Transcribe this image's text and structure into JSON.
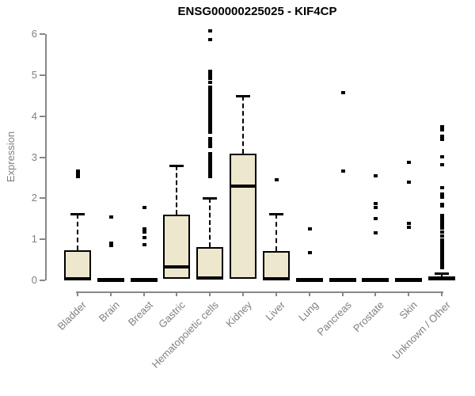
{
  "chart_data": {
    "type": "boxplot",
    "title": "ENSG00000225025 - KIF4CP",
    "ylabel": "Expression",
    "xlabel": "",
    "ylim": [
      0,
      6
    ],
    "yticks": [
      0,
      1,
      2,
      3,
      4,
      5,
      6
    ],
    "grid": false,
    "legend": "none",
    "box_fill": "#ECE7CD",
    "box_border": "#000000",
    "axis_color": "#888888",
    "label_color": "#808080",
    "title_color": "#000000",
    "categories": [
      "Bladder",
      "Brain",
      "Breast",
      "Gastric",
      "Hematopoietic cells",
      "Kidney",
      "Liver",
      "Lung",
      "Pancreas",
      "Prostate",
      "Skin",
      "Unknown / Other"
    ],
    "boxes": [
      {
        "category": "Bladder",
        "whisker_low": 0,
        "q1": 0,
        "median": 0.04,
        "q3": 0.73,
        "whisker_high": 1.63,
        "outliers": [
          2.53,
          2.6,
          2.66
        ]
      },
      {
        "category": "Brain",
        "whisker_low": 0,
        "q1": 0,
        "median": 0.02,
        "q3": 0.04,
        "whisker_high": 0.04,
        "outliers": [
          0.85,
          0.9,
          1.55
        ]
      },
      {
        "category": "Breast",
        "whisker_low": 0,
        "q1": 0,
        "median": 0.02,
        "q3": 0.04,
        "whisker_high": 0.04,
        "outliers": [
          0.86,
          1.04,
          1.18,
          1.25,
          1.78
        ]
      },
      {
        "category": "Gastric",
        "whisker_low": 0,
        "q1": 0.03,
        "median": 0.33,
        "q3": 1.6,
        "whisker_high": 2.8,
        "outliers": []
      },
      {
        "category": "Hematopoietic cells",
        "whisker_low": 0,
        "q1": 0.01,
        "median": 0.05,
        "q3": 0.81,
        "whisker_high": 2.0,
        "outliers": [
          2.53,
          2.58,
          2.63,
          2.68,
          2.73,
          2.78,
          2.83,
          2.88,
          2.93,
          2.98,
          3.03,
          3.08,
          3.26,
          3.31,
          3.36,
          3.41,
          3.46,
          3.6,
          3.65,
          3.7,
          3.75,
          3.8,
          3.85,
          3.9,
          3.95,
          4.0,
          4.05,
          4.1,
          4.15,
          4.2,
          4.25,
          4.3,
          4.35,
          4.4,
          4.45,
          4.5,
          4.55,
          4.6,
          4.65,
          4.7,
          4.82,
          4.92,
          4.98,
          5.04,
          5.1,
          5.86,
          6.08
        ]
      },
      {
        "category": "Kidney",
        "whisker_low": 0,
        "q1": 0.04,
        "median": 2.3,
        "q3": 3.08,
        "whisker_high": 4.5,
        "outliers": []
      },
      {
        "category": "Liver",
        "whisker_low": 0,
        "q1": 0.01,
        "median": 0.04,
        "q3": 0.72,
        "whisker_high": 1.63,
        "outliers": [
          2.45
        ]
      },
      {
        "category": "Lung",
        "whisker_low": 0,
        "q1": 0,
        "median": 0.02,
        "q3": 0.04,
        "whisker_high": 0.04,
        "outliers": [
          0.67,
          1.25
        ]
      },
      {
        "category": "Pancreas",
        "whisker_low": 0,
        "q1": 0,
        "median": 0.02,
        "q3": 0.04,
        "whisker_high": 0.04,
        "outliers": [
          2.67,
          4.58
        ]
      },
      {
        "category": "Prostate",
        "whisker_low": 0,
        "q1": 0,
        "median": 0.02,
        "q3": 0.04,
        "whisker_high": 0.04,
        "outliers": [
          1.15,
          1.5,
          1.77,
          1.88,
          2.54
        ]
      },
      {
        "category": "Skin",
        "whisker_low": 0,
        "q1": 0,
        "median": 0.02,
        "q3": 0.04,
        "whisker_high": 0.04,
        "outliers": [
          1.3,
          1.38,
          2.4,
          2.88
        ]
      },
      {
        "category": "Unknown / Other",
        "whisker_low": 0,
        "q1": 0,
        "median": 0.03,
        "q3": 0.1,
        "whisker_high": 0.18,
        "outliers": [
          0.31,
          0.33,
          0.38,
          0.43,
          0.48,
          0.53,
          0.58,
          0.63,
          0.68,
          0.73,
          0.78,
          0.83,
          0.88,
          0.93,
          0.98,
          1.08,
          1.18,
          1.27,
          1.33,
          1.38,
          1.43,
          1.48,
          1.53,
          1.58,
          1.81,
          1.85,
          2.02,
          2.1,
          2.26,
          2.82,
          3.01,
          3.44,
          3.51,
          3.67,
          3.74
        ]
      }
    ]
  }
}
